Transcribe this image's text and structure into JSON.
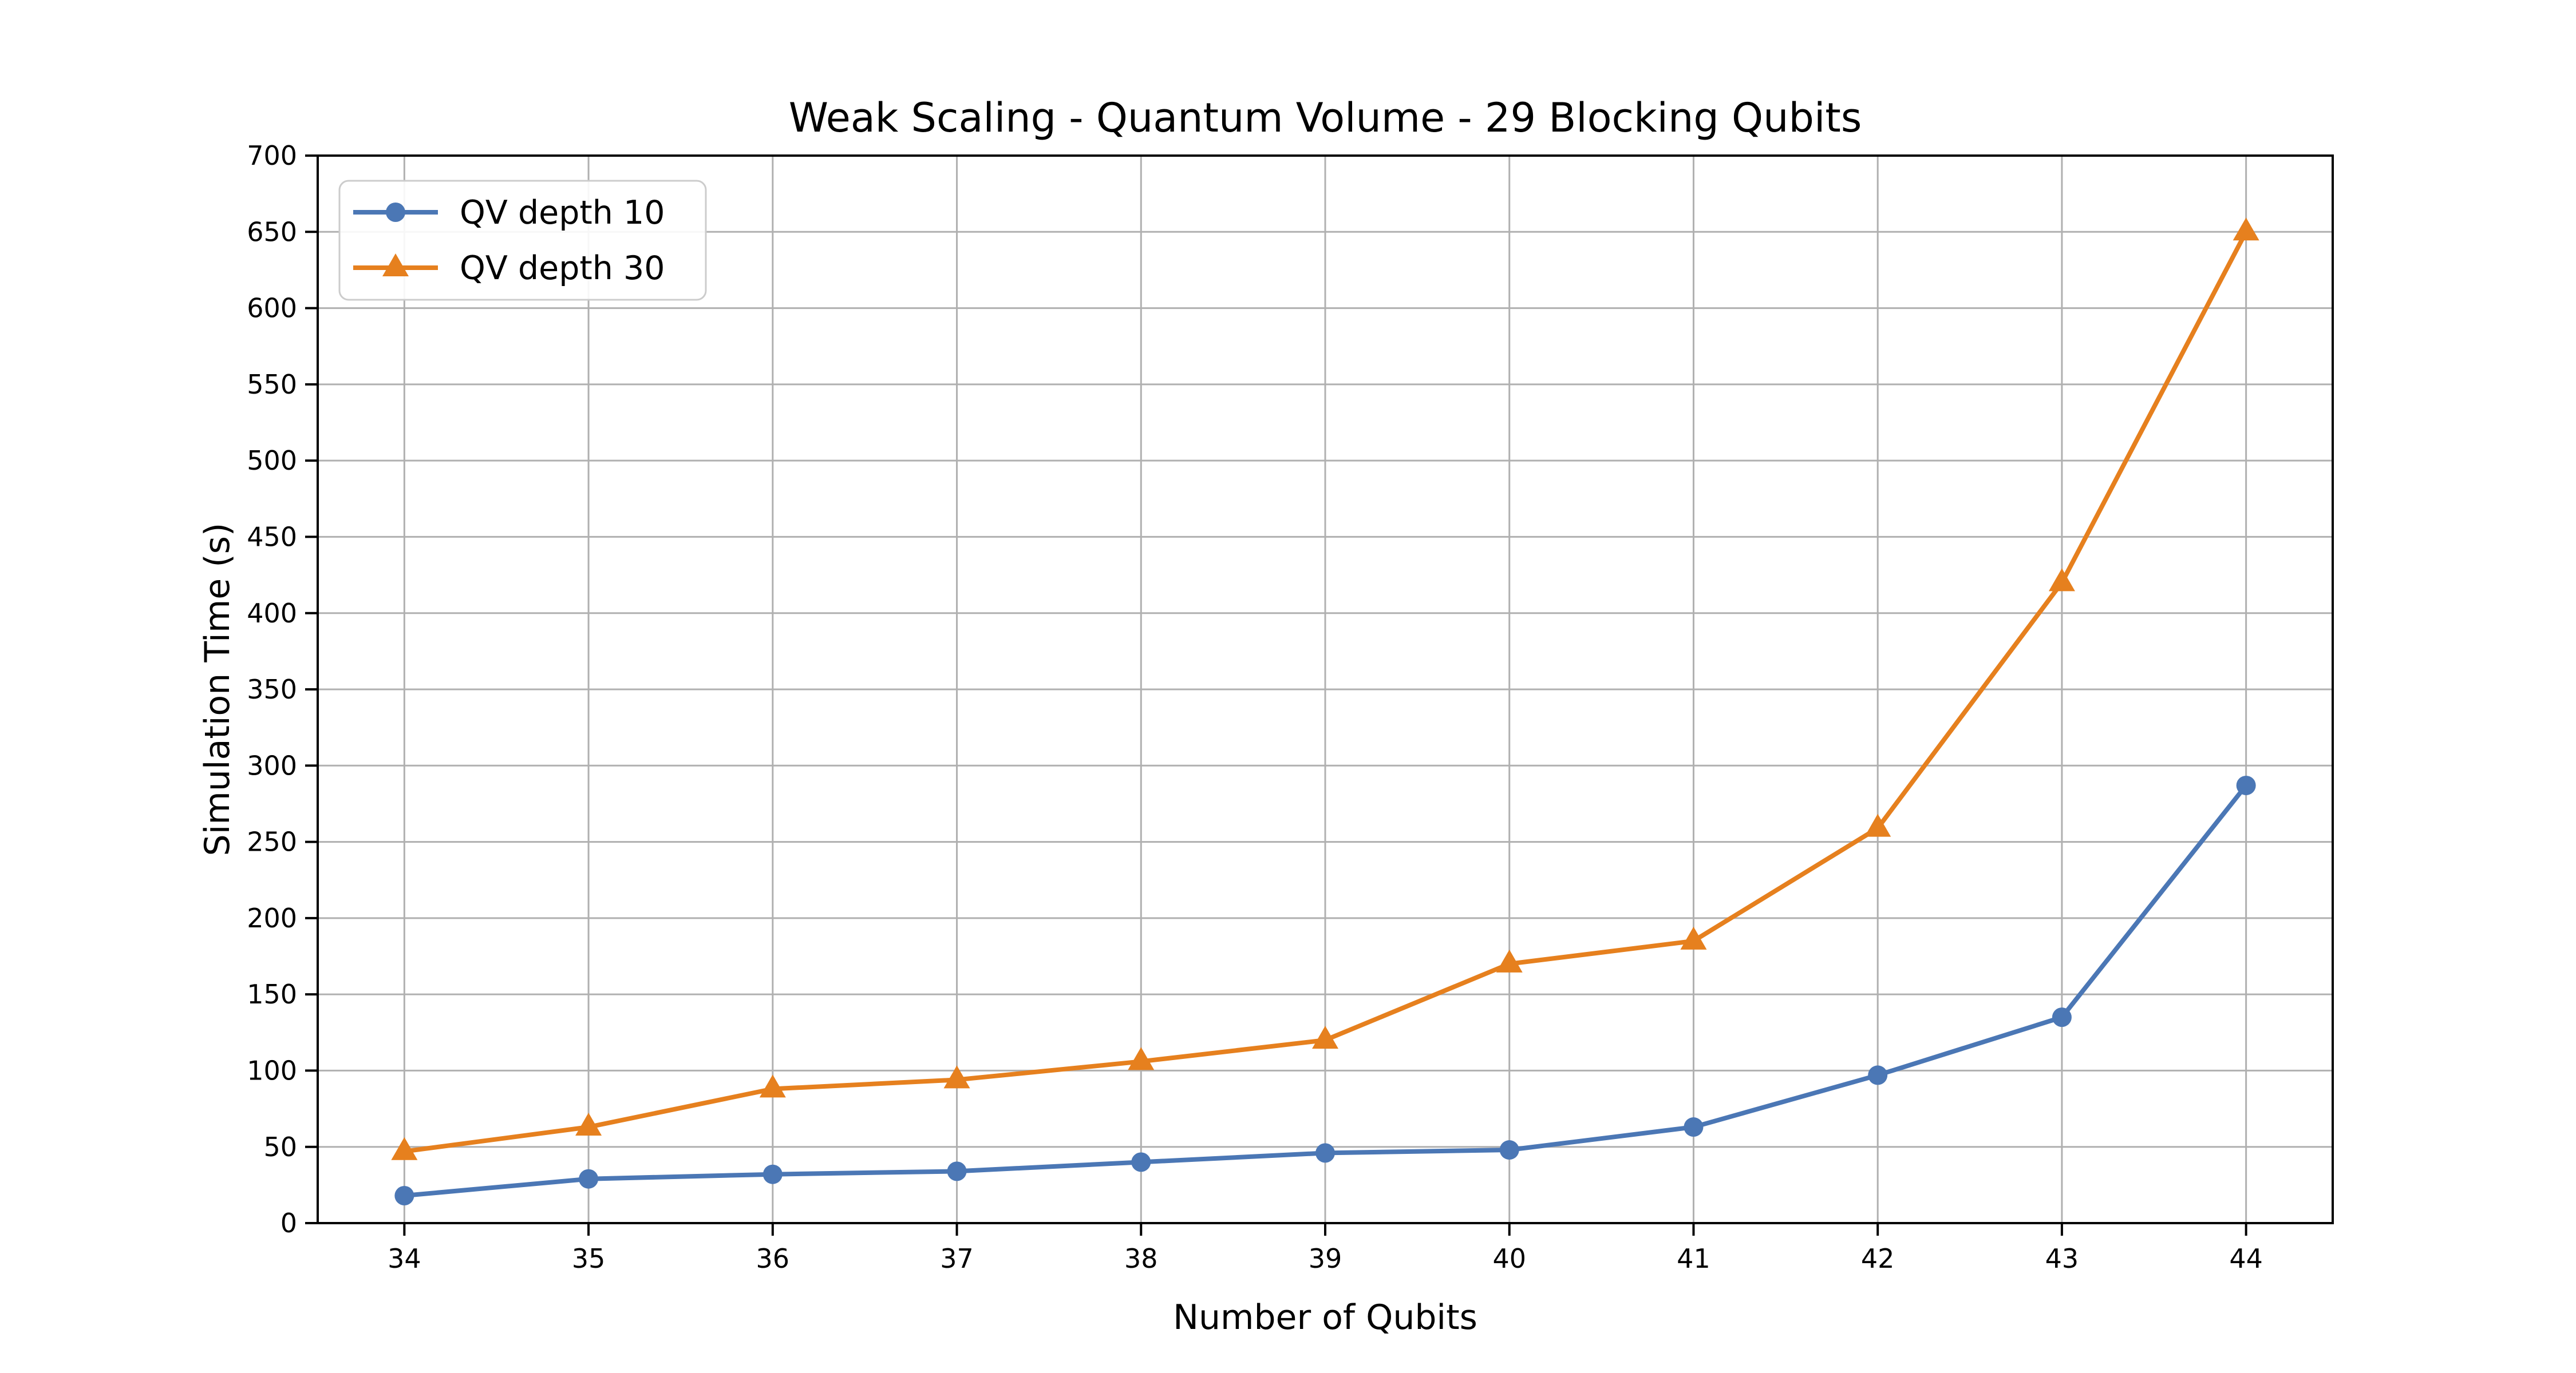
{
  "chart_data": {
    "type": "line",
    "title": "Weak Scaling - Quantum Volume - 29 Blocking Qubits",
    "xlabel": "Number of Qubits",
    "ylabel": "Simulation Time (s)",
    "x": [
      34,
      35,
      36,
      37,
      38,
      39,
      40,
      41,
      42,
      43,
      44
    ],
    "xticks": [
      34,
      35,
      36,
      37,
      38,
      39,
      40,
      41,
      42,
      43,
      44
    ],
    "yticks": [
      0,
      50,
      100,
      150,
      200,
      250,
      300,
      350,
      400,
      450,
      500,
      550,
      600,
      650,
      700
    ],
    "ylim": [
      0,
      700
    ],
    "grid": true,
    "legend_position": "upper left",
    "series": [
      {
        "name": "QV depth 10",
        "marker": "circle",
        "color": "#4b77b5",
        "values": [
          18,
          29,
          32,
          34,
          40,
          46,
          48,
          63,
          97,
          135,
          287
        ]
      },
      {
        "name": "QV depth 30",
        "marker": "triangle",
        "color": "#e6801e",
        "values": [
          47,
          63,
          88,
          94,
          106,
          120,
          170,
          185,
          259,
          420,
          650
        ]
      }
    ]
  },
  "colors": {
    "background": "#ffffff",
    "grid": "#b0b0b0",
    "spine": "#000000",
    "text": "#000000",
    "legend_border": "#cccccc",
    "legend_background": "#ffffff"
  }
}
